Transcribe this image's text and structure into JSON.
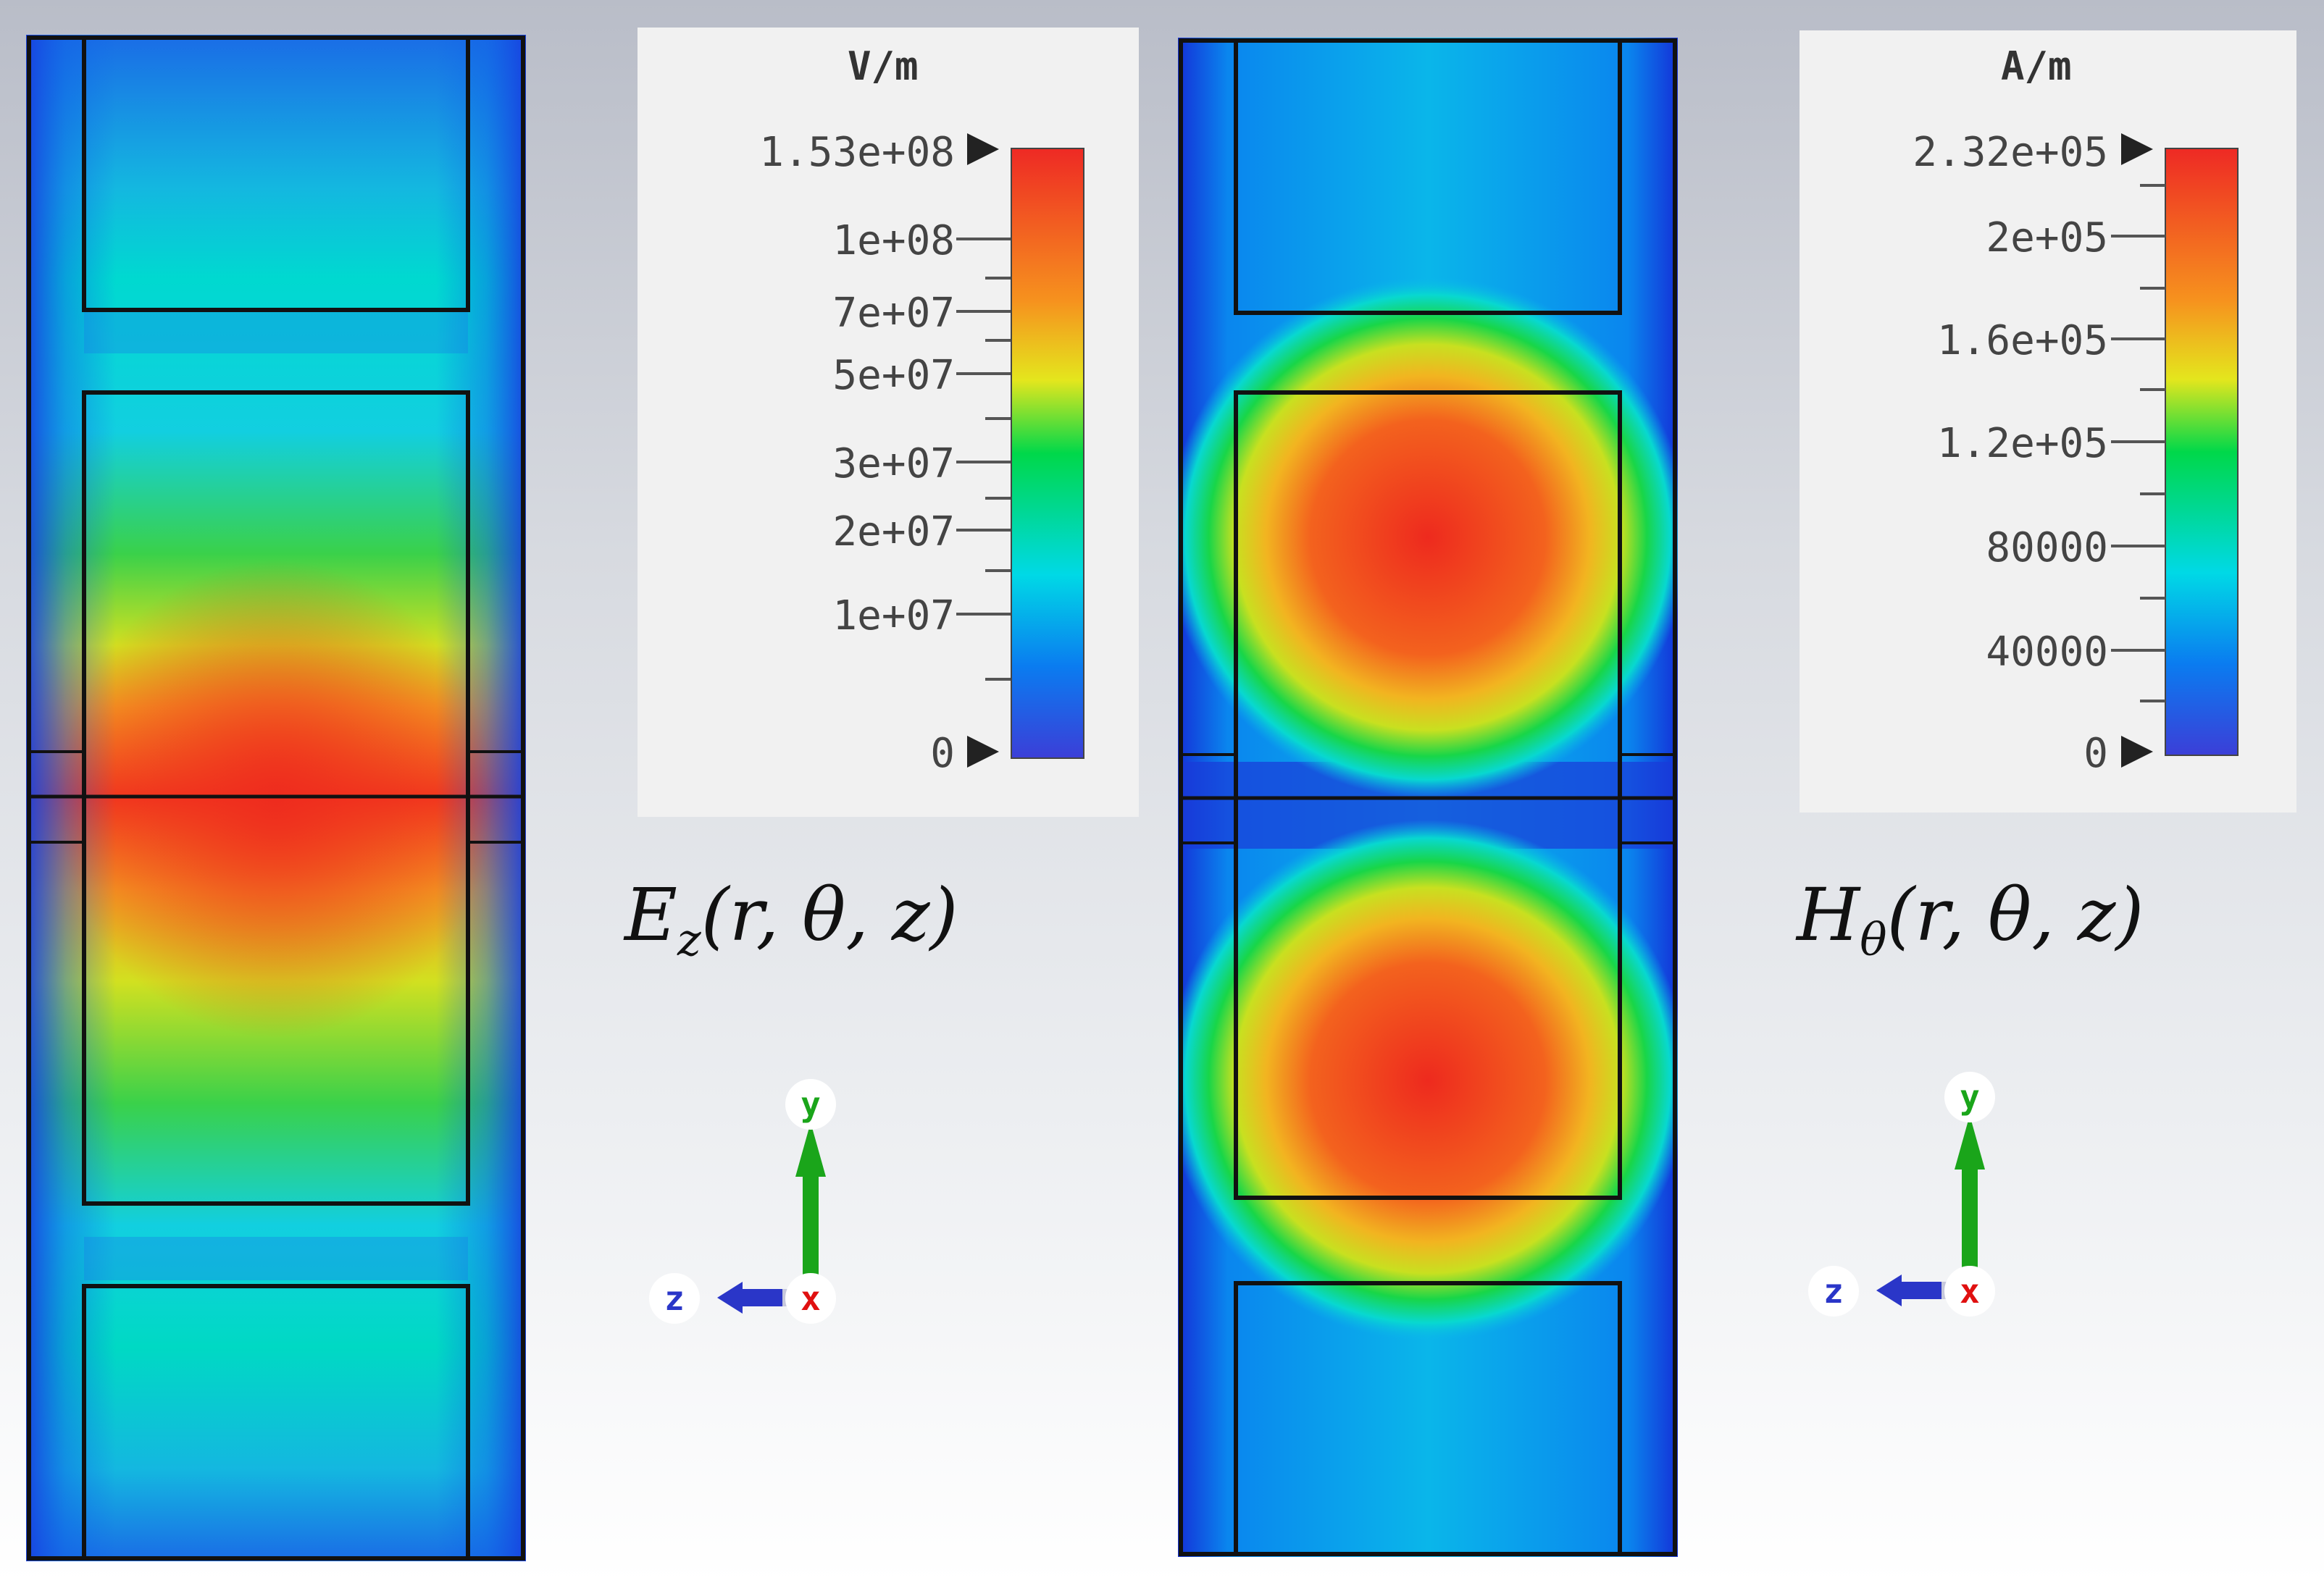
{
  "panels": [
    {
      "id": "ez",
      "legend": {
        "unit": "V/m",
        "max_label": "1.53e+08",
        "ticks": [
          "1e+08",
          "7e+07",
          "5e+07",
          "3e+07",
          "2e+07",
          "1e+07",
          "0"
        ]
      },
      "formula": {
        "base": "E",
        "sub": "z",
        "args": "(r, θ, z)"
      },
      "axes": {
        "y": "y",
        "z": "z",
        "x": "x"
      }
    },
    {
      "id": "htheta",
      "legend": {
        "unit": "A/m",
        "max_label": "2.32e+05",
        "ticks": [
          "2e+05",
          "1.6e+05",
          "1.2e+05",
          "80000",
          "40000",
          "0"
        ]
      },
      "formula": {
        "base": "H",
        "sub": "θ",
        "args": "(r, θ, z)"
      },
      "axes": {
        "y": "y",
        "z": "z",
        "x": "x"
      }
    }
  ],
  "colormap": [
    "#3b3fd8",
    "#0a7cf0",
    "#00d9e6",
    "#00d84a",
    "#e4e61d",
    "#f6921e",
    "#ee2a24"
  ],
  "axis_colors": {
    "y": "#1aa51a",
    "z": "#2a36c8",
    "x": "#e01010"
  }
}
